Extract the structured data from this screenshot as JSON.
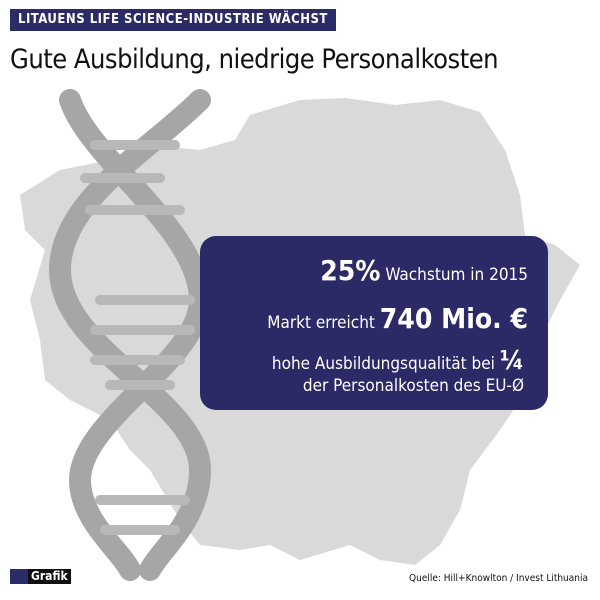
{
  "header": {
    "kicker": "LITAUENS LIFE SCIENCE-INDUSTRIE WÄCHST",
    "title": "Gute Ausbildung, niedrige Personalkosten"
  },
  "box": {
    "line1": {
      "big": "25%",
      "text": "Wachstum in 2015"
    },
    "line2": {
      "text": "Markt erreicht",
      "big": "740 Mio. €"
    },
    "line3": {
      "text": "hohe Ausbildungsqualität bei",
      "big": "¼"
    },
    "line4": {
      "text": "der Personalkosten des EU-Ø"
    }
  },
  "footer": {
    "logo": "Grafik",
    "source": "Quelle: Hill+Knowlton / Invest Lithuania"
  }
}
